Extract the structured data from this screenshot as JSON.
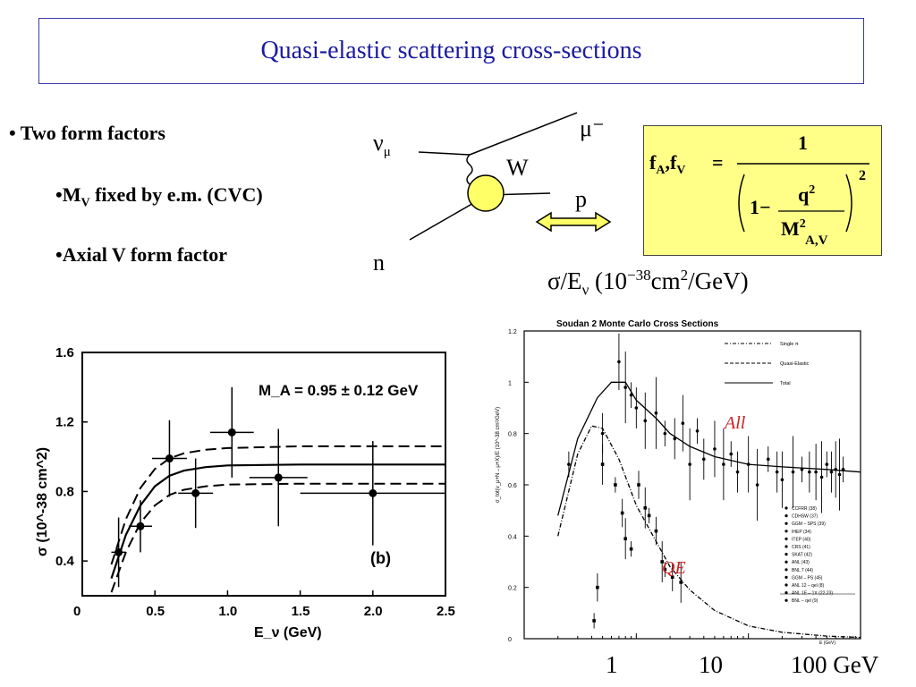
{
  "title": "Quasi-elastic scattering cross-sections",
  "bullets": {
    "main": "• Two form factors",
    "mv_prefix": "•M",
    "mv_sub": "V",
    "mv_rest": " fixed by e.m. (CVC)",
    "axial": "•Axial V form factor"
  },
  "feynman": {
    "nu_mu": "ν",
    "nu_sub": "μ",
    "mu_minus": "μ⁻",
    "w": "W",
    "p": "p",
    "n": "n"
  },
  "formula": {
    "lhs": "f",
    "lhs_sub1": "A",
    "comma": ",f",
    "lhs_sub2": "V",
    "eq": "=",
    "numerator": "1",
    "one_minus": "1−",
    "q": "q",
    "q_exp": "2",
    "m": "M",
    "m_exp": "2",
    "m_sub": "A,V",
    "outer_exp": "2"
  },
  "sigma_label": {
    "prefix": "σ/E",
    "sub": "ν",
    "mid": " (10",
    "sup1": "−38",
    "mid2": "cm",
    "sup2": "2",
    "suffix": "/GeV)"
  },
  "bottom_ticks": [
    "1",
    "10",
    "100 GeV"
  ],
  "colors": {
    "title": "#1b1ba0",
    "formula_bg": "#ffff88",
    "blob": "#ffff66",
    "arrow": "#ffff66",
    "annotation_red": "#cc2222"
  },
  "chart_data": [
    {
      "type": "scatter",
      "title": "",
      "annotation": "M_A = 0.95 ± 0.12 GeV",
      "panel_label": "(b)",
      "xlabel": "E_ν (GeV)",
      "ylabel": "σ (10^-38 cm^2)",
      "xlim": [
        0,
        2.5
      ],
      "ylim": [
        0.2,
        1.6
      ],
      "xticks": [
        "0",
        "0.5",
        "1.0",
        "1.5",
        "2.0",
        "2.5"
      ],
      "yticks": [
        "0.4",
        "0.8",
        "1.2",
        "1.6"
      ],
      "points": [
        {
          "x": 0.25,
          "y": 0.45,
          "xerr": 0.05,
          "yerr": 0.2
        },
        {
          "x": 0.4,
          "y": 0.6,
          "xerr": 0.08,
          "yerr": 0.15
        },
        {
          "x": 0.6,
          "y": 0.99,
          "xerr": 0.12,
          "yerr": 0.22
        },
        {
          "x": 0.78,
          "y": 0.79,
          "xerr": 0.12,
          "yerr": 0.2
        },
        {
          "x": 1.03,
          "y": 1.14,
          "xerr": 0.15,
          "yerr": 0.26
        },
        {
          "x": 1.35,
          "y": 0.88,
          "xerr": 0.2,
          "yerr": 0.28
        },
        {
          "x": 2.0,
          "y": 0.79,
          "xerr": 0.5,
          "yerr": 0.3
        }
      ],
      "curves": {
        "central": [
          [
            0.2,
            0.3
          ],
          [
            0.3,
            0.55
          ],
          [
            0.4,
            0.72
          ],
          [
            0.5,
            0.83
          ],
          [
            0.6,
            0.89
          ],
          [
            0.7,
            0.92
          ],
          [
            0.85,
            0.94
          ],
          [
            1.0,
            0.95
          ],
          [
            1.5,
            0.955
          ],
          [
            2.0,
            0.955
          ],
          [
            2.5,
            0.955
          ]
        ],
        "upper": [
          [
            0.2,
            0.38
          ],
          [
            0.3,
            0.64
          ],
          [
            0.4,
            0.82
          ],
          [
            0.5,
            0.93
          ],
          [
            0.6,
            0.99
          ],
          [
            0.7,
            1.02
          ],
          [
            0.85,
            1.04
          ],
          [
            1.0,
            1.05
          ],
          [
            1.5,
            1.06
          ],
          [
            2.0,
            1.06
          ],
          [
            2.5,
            1.06
          ]
        ],
        "lower": [
          [
            0.2,
            0.22
          ],
          [
            0.3,
            0.45
          ],
          [
            0.4,
            0.62
          ],
          [
            0.5,
            0.72
          ],
          [
            0.6,
            0.78
          ],
          [
            0.7,
            0.81
          ],
          [
            0.85,
            0.83
          ],
          [
            1.0,
            0.84
          ],
          [
            1.5,
            0.845
          ],
          [
            2.0,
            0.845
          ],
          [
            2.5,
            0.845
          ]
        ]
      }
    },
    {
      "type": "scatter",
      "title": "Soudan 2 Monte Carlo Cross Sections",
      "xlabel": "E (GeV)",
      "ylabel": "σ_tot(ν_μ+N→μ+X)/E (10^-38 cm²/GeV)",
      "xscale": "log",
      "xlim": [
        0.1,
        100
      ],
      "ylim": [
        0,
        1.2
      ],
      "yticks": [
        "0",
        "0.2",
        "0.4",
        "0.6",
        "0.8",
        "1",
        "1.2"
      ],
      "legend_top": [
        "Single π",
        "Quasi-Elastic",
        "Total"
      ],
      "legend_bottom": [
        "CCFRR (38)",
        "CDHSW (37)",
        "GGM – SPS (39)",
        "IHEP (34)",
        "ITEP (40)",
        "CRS (41)",
        "SKAT (42)",
        "ANL (43)",
        "BNL 7 (44)",
        "GGM – PS (45)",
        "ANL 12 – qel (8)",
        "ANL 1E – 1π (22,23)",
        "BNL – qel (9)"
      ],
      "annotations": {
        "all": "All",
        "qe": "QE"
      },
      "series": [
        {
          "name": "Total",
          "points": [
            [
              0.2,
              0.48
            ],
            [
              0.3,
              0.78
            ],
            [
              0.45,
              0.94
            ],
            [
              0.6,
              1.0
            ],
            [
              0.8,
              1.0
            ],
            [
              1,
              0.93
            ],
            [
              1.5,
              0.86
            ],
            [
              2,
              0.8
            ],
            [
              3,
              0.75
            ],
            [
              5,
              0.71
            ],
            [
              10,
              0.68
            ],
            [
              20,
              0.67
            ],
            [
              50,
              0.66
            ],
            [
              100,
              0.65
            ]
          ]
        },
        {
          "name": "Quasi-Elastic",
          "points": [
            [
              0.2,
              0.4
            ],
            [
              0.3,
              0.72
            ],
            [
              0.4,
              0.83
            ],
            [
              0.5,
              0.82
            ],
            [
              0.7,
              0.7
            ],
            [
              1,
              0.52
            ],
            [
              1.5,
              0.38
            ],
            [
              2,
              0.28
            ],
            [
              3,
              0.19
            ],
            [
              5,
              0.11
            ],
            [
              10,
              0.05
            ],
            [
              20,
              0.025
            ],
            [
              50,
              0.01
            ],
            [
              100,
              0.005
            ]
          ]
        }
      ],
      "data_points_all": [
        [
          0.25,
          0.68
        ],
        [
          0.5,
          0.8
        ],
        [
          0.7,
          1.08
        ],
        [
          0.8,
          0.98
        ],
        [
          0.9,
          0.95
        ],
        [
          1.0,
          0.9
        ],
        [
          1.2,
          0.85
        ],
        [
          1.5,
          0.88
        ],
        [
          1.8,
          0.8
        ],
        [
          2.2,
          0.78
        ],
        [
          2.6,
          0.84
        ],
        [
          3,
          0.68
        ],
        [
          3.5,
          0.81
        ],
        [
          4,
          0.7
        ],
        [
          5,
          0.74
        ],
        [
          6,
          0.68
        ],
        [
          7,
          0.72
        ],
        [
          8,
          0.65
        ],
        [
          10,
          0.68
        ],
        [
          12,
          0.6
        ],
        [
          15,
          0.7
        ],
        [
          18,
          0.65
        ],
        [
          20,
          0.62
        ],
        [
          25,
          0.65
        ],
        [
          30,
          0.66
        ],
        [
          35,
          0.65
        ],
        [
          40,
          0.65
        ],
        [
          45,
          0.63
        ],
        [
          50,
          0.68
        ],
        [
          55,
          0.65
        ],
        [
          60,
          0.66
        ],
        [
          65,
          0.64
        ],
        [
          70,
          0.66
        ]
      ],
      "data_points_qe": [
        [
          0.42,
          0.07
        ],
        [
          0.45,
          0.2
        ],
        [
          0.5,
          0.68
        ],
        [
          0.65,
          0.6
        ],
        [
          0.75,
          0.49
        ],
        [
          0.8,
          0.39
        ],
        [
          0.9,
          0.35
        ],
        [
          1.05,
          0.6
        ],
        [
          1.2,
          0.51
        ],
        [
          1.3,
          0.48
        ],
        [
          1.5,
          0.42
        ],
        [
          1.7,
          0.3
        ],
        [
          1.8,
          0.27
        ],
        [
          2.1,
          0.24
        ],
        [
          2.5,
          0.22
        ]
      ]
    }
  ]
}
